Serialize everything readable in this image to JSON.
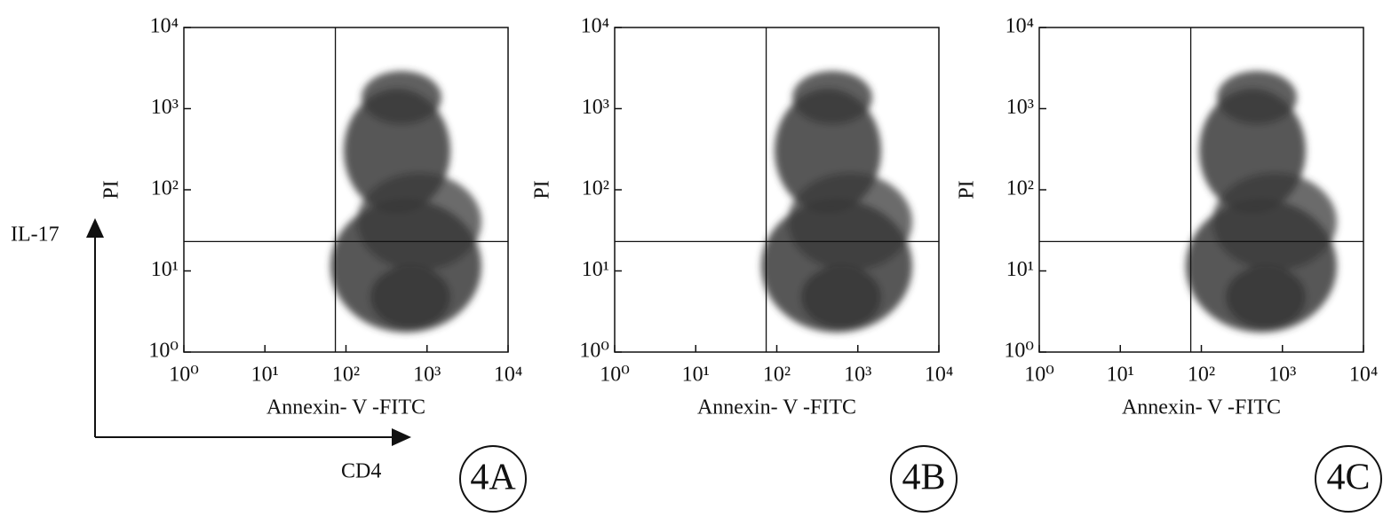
{
  "chart_data": [
    {
      "type": "density",
      "panel_label": "4A",
      "xlabel": "Annexin- V -FITC",
      "ylabel": "PI",
      "log_scale": true,
      "xlim": [
        1,
        10000
      ],
      "ylim": [
        1,
        10000
      ],
      "xticks": [
        {
          "value": 1,
          "label": "10⁰"
        },
        {
          "value": 10,
          "label": "10¹"
        },
        {
          "value": 100,
          "label": "10²"
        },
        {
          "value": 1000,
          "label": "10³"
        },
        {
          "value": 10000,
          "label": "10⁴"
        }
      ],
      "yticks": [
        {
          "value": 1,
          "label": "10⁰"
        },
        {
          "value": 10,
          "label": "10¹"
        },
        {
          "value": 100,
          "label": "10²"
        },
        {
          "value": 1000,
          "label": "10³"
        },
        {
          "value": 10000,
          "label": "10⁴"
        }
      ],
      "xgate": 74,
      "ygate": 23,
      "color": "#3a3a3a"
    },
    {
      "type": "density",
      "panel_label": "4B",
      "xlabel": "Annexin- V -FITC",
      "ylabel": "PI",
      "log_scale": true,
      "xlim": [
        1,
        10000
      ],
      "ylim": [
        1,
        10000
      ],
      "xticks": [
        {
          "value": 1,
          "label": "10⁰"
        },
        {
          "value": 10,
          "label": "10¹"
        },
        {
          "value": 100,
          "label": "10²"
        },
        {
          "value": 1000,
          "label": "10³"
        },
        {
          "value": 10000,
          "label": "10⁴"
        }
      ],
      "yticks": [
        {
          "value": 1,
          "label": "10⁰"
        },
        {
          "value": 10,
          "label": "10¹"
        },
        {
          "value": 100,
          "label": "10²"
        },
        {
          "value": 1000,
          "label": "10³"
        },
        {
          "value": 10000,
          "label": "10⁴"
        }
      ],
      "xgate": 74,
      "ygate": 23,
      "color": "#3a3a3a"
    },
    {
      "type": "density",
      "panel_label": "4C",
      "xlabel": "Annexin- V -FITC",
      "ylabel": "PI",
      "log_scale": true,
      "xlim": [
        1,
        10000
      ],
      "ylim": [
        1,
        10000
      ],
      "xticks": [
        {
          "value": 1,
          "label": "10⁰"
        },
        {
          "value": 10,
          "label": "10¹"
        },
        {
          "value": 100,
          "label": "10²"
        },
        {
          "value": 1000,
          "label": "10³"
        },
        {
          "value": 10000,
          "label": "10⁴"
        }
      ],
      "yticks": [
        {
          "value": 1,
          "label": "10⁰"
        },
        {
          "value": 10,
          "label": "10¹"
        },
        {
          "value": 100,
          "label": "10²"
        },
        {
          "value": 1000,
          "label": "10³"
        },
        {
          "value": 10000,
          "label": "10⁴"
        }
      ],
      "xgate": 74,
      "ygate": 23,
      "color": "#3a3a3a"
    }
  ],
  "annotations": {
    "y_arrow_label": "IL-17",
    "x_arrow_label": "CD4"
  }
}
